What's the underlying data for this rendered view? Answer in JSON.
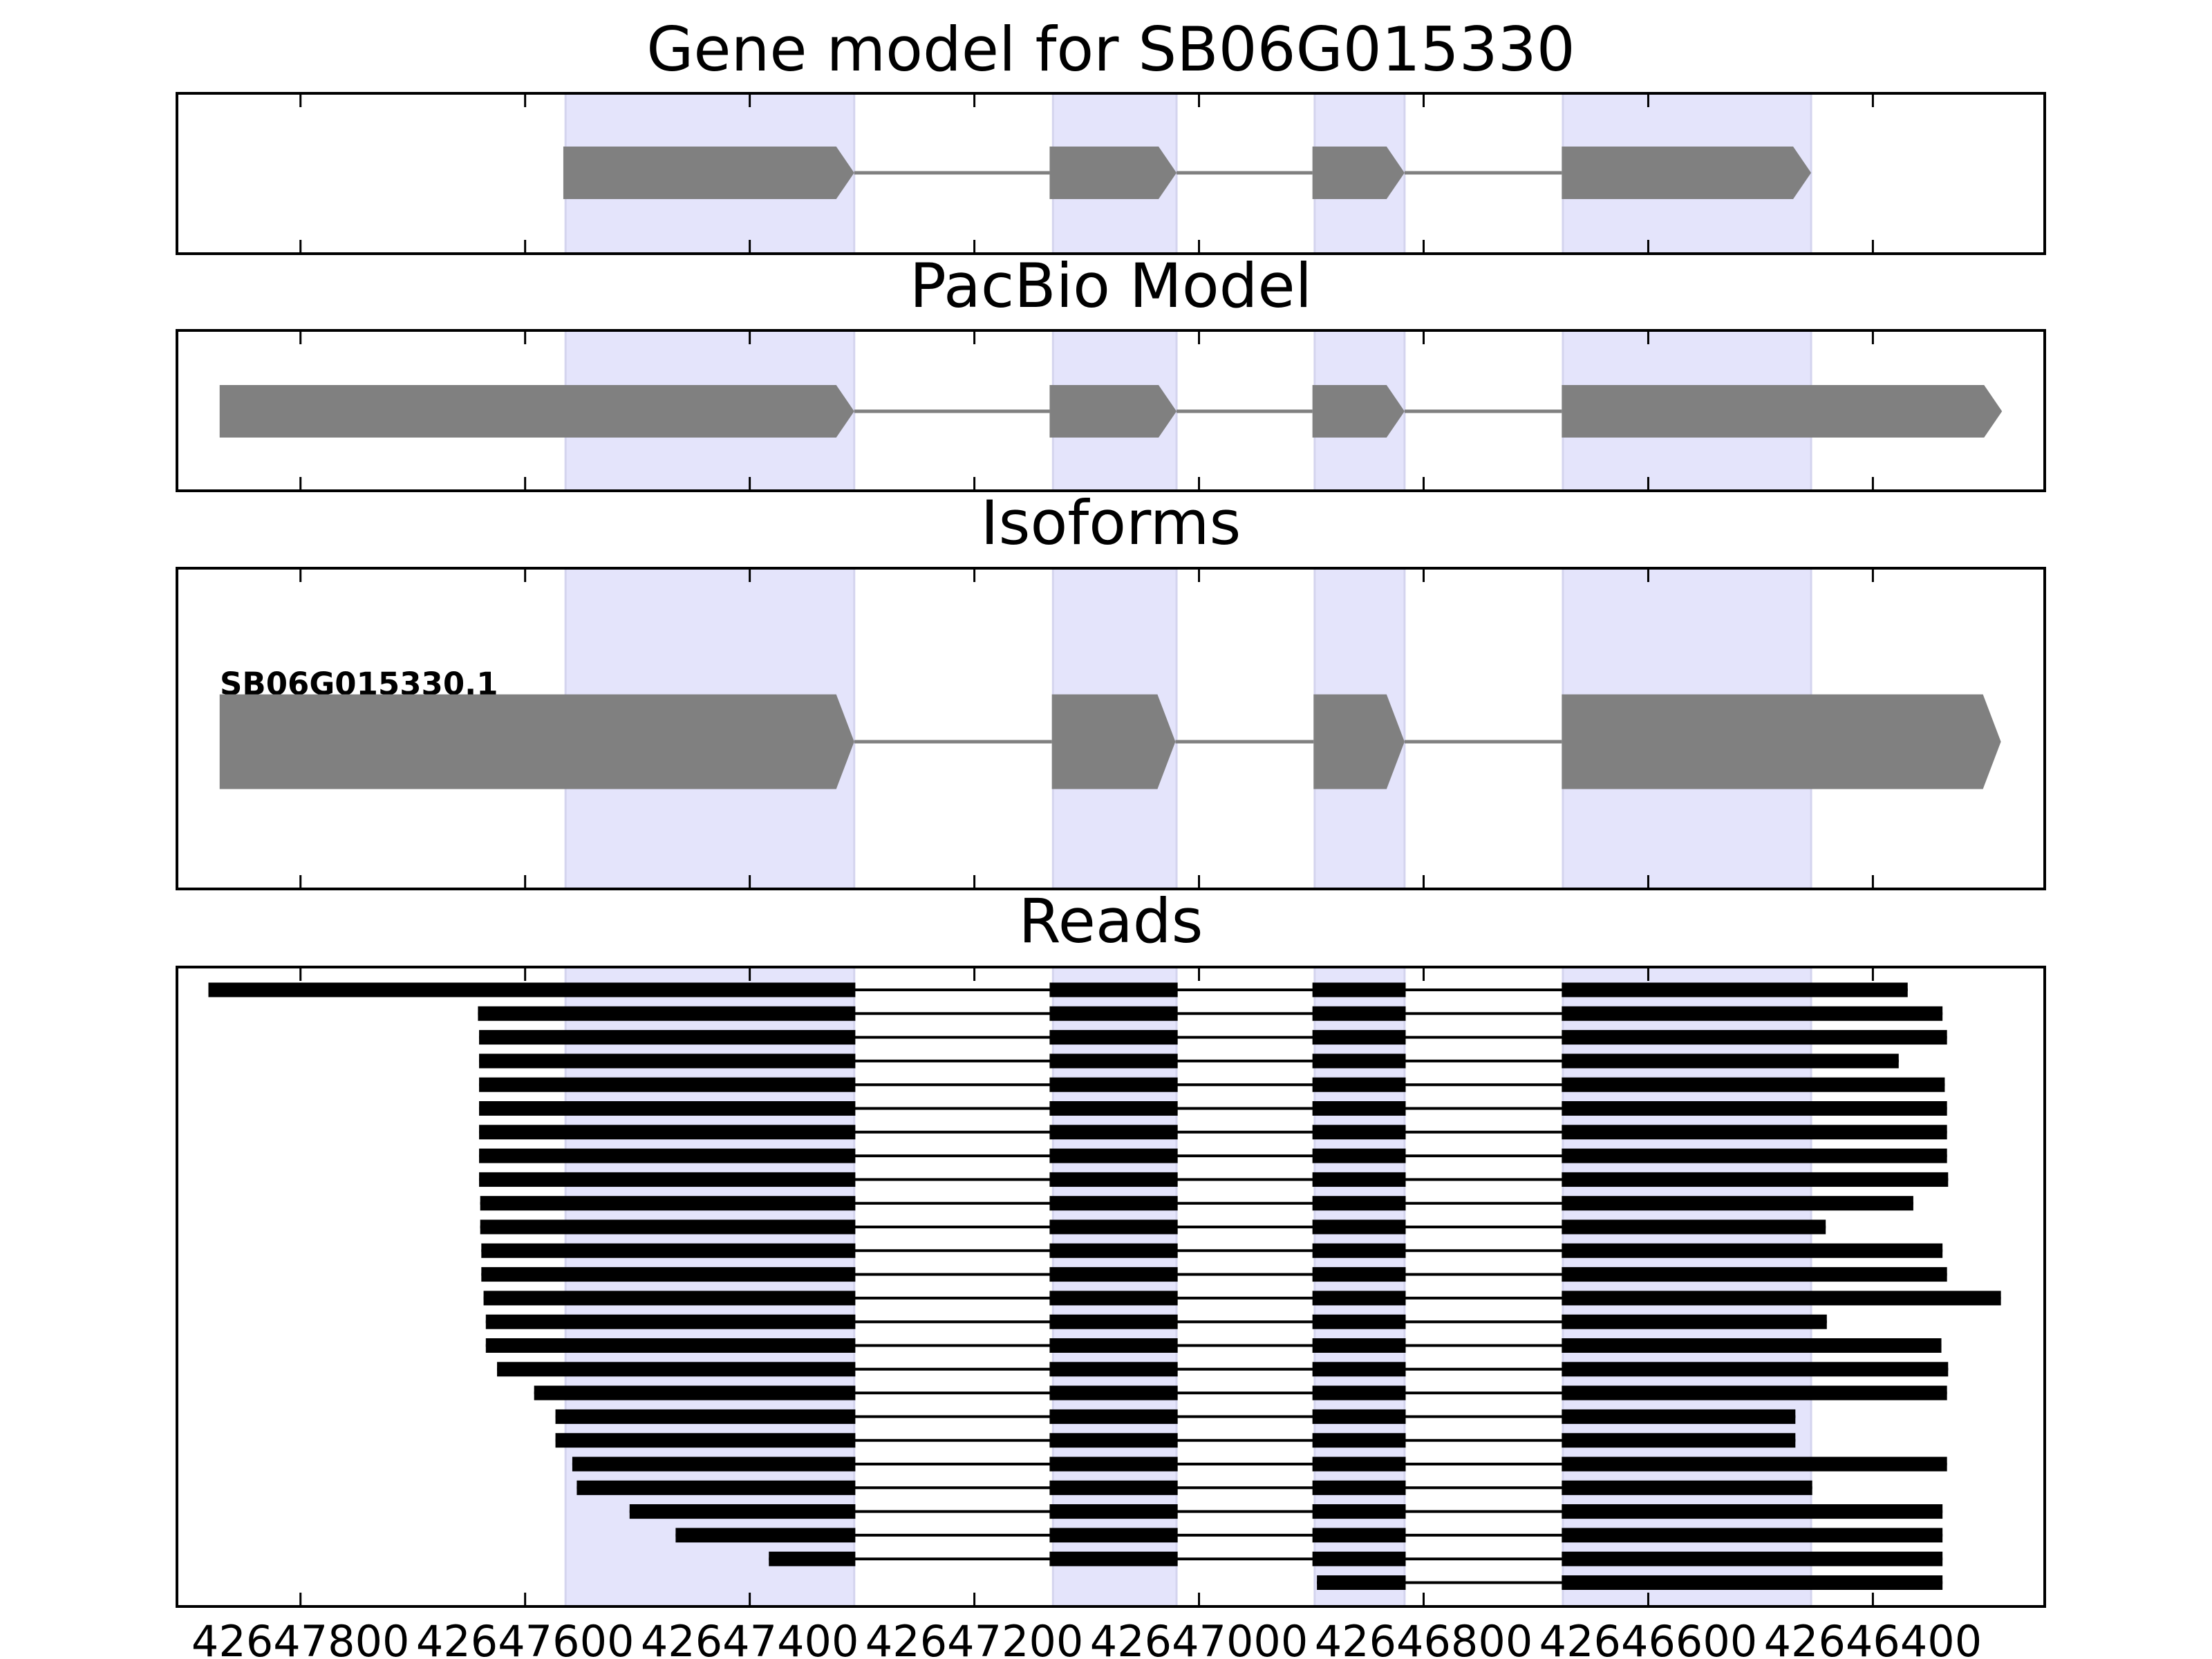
{
  "chart_data": [
    {
      "type": "gene",
      "title": "Gene model for SB06G015330",
      "xlim": [
        42647910,
        42646247
      ],
      "xticks": [
        42647800,
        42647600,
        42647400,
        42647200,
        42647000,
        42646800,
        42646600,
        42646400
      ],
      "highlights": [
        [
          42647564,
          42647307
        ],
        [
          42647130,
          42647020
        ],
        [
          42646897,
          42646817
        ],
        [
          42646676,
          42646455
        ]
      ],
      "highlight_color": "#e4e4fb",
      "color": "#808080",
      "transcripts": [
        {
          "exons": [
            [
              42647566,
              42647307
            ],
            [
              42647133,
              42647020
            ],
            [
              42646899,
              42646817
            ],
            [
              42646677,
              42646455
            ]
          ]
        }
      ]
    },
    {
      "type": "gene",
      "title": "PacBio Model",
      "xlim": [
        42647910,
        42646247
      ],
      "xticks": [
        42647800,
        42647600,
        42647400,
        42647200,
        42647000,
        42646800,
        42646600,
        42646400
      ],
      "highlights": [
        [
          42647564,
          42647307
        ],
        [
          42647130,
          42647020
        ],
        [
          42646897,
          42646817
        ],
        [
          42646676,
          42646455
        ]
      ],
      "highlight_color": "#e4e4fb",
      "color": "#808080",
      "transcripts": [
        {
          "exons": [
            [
              42647872,
              42647307
            ],
            [
              42647133,
              42647020
            ],
            [
              42646899,
              42646817
            ],
            [
              42646677,
              42646285
            ]
          ]
        }
      ]
    },
    {
      "type": "gene",
      "title": "Isoforms",
      "xlim": [
        42647910,
        42646247
      ],
      "xticks": [
        42647800,
        42647600,
        42647400,
        42647200,
        42647000,
        42646800,
        42646600,
        42646400
      ],
      "highlights": [
        [
          42647564,
          42647307
        ],
        [
          42647130,
          42647020
        ],
        [
          42646897,
          42646817
        ],
        [
          42646676,
          42646455
        ]
      ],
      "highlight_color": "#e4e4fb",
      "color": "#808080",
      "transcripts": [
        {
          "name": "SB06G015330.1",
          "exons": [
            [
              42647872,
              42647307
            ],
            [
              42647131,
              42647021
            ],
            [
              42646898,
              42646817
            ],
            [
              42646677,
              42646286
            ]
          ]
        }
      ]
    },
    {
      "type": "reads",
      "title": "Reads",
      "xlim": [
        42647910,
        42646247
      ],
      "xticks": [
        42647800,
        42647600,
        42647400,
        42647200,
        42647000,
        42646800,
        42646600,
        42646400
      ],
      "highlights": [
        [
          42647564,
          42647307
        ],
        [
          42647130,
          42647020
        ],
        [
          42646897,
          42646817
        ],
        [
          42646676,
          42646455
        ]
      ],
      "highlight_color": "#e4e4fb",
      "color": "#000000",
      "exons": [
        [
          42647882,
          42647306
        ],
        [
          42647133,
          42647019
        ],
        [
          42646899,
          42646816
        ],
        [
          42646677,
          42646286
        ]
      ],
      "reads": [
        {
          "start": 42647882,
          "end": 42646369
        },
        {
          "start": 42647642,
          "end": 42646338
        },
        {
          "start": 42647641,
          "end": 42646334
        },
        {
          "start": 42647641,
          "end": 42646377
        },
        {
          "start": 42647641,
          "end": 42646336
        },
        {
          "start": 42647641,
          "end": 42646334
        },
        {
          "start": 42647641,
          "end": 42646334
        },
        {
          "start": 42647641,
          "end": 42646334
        },
        {
          "start": 42647641,
          "end": 42646333
        },
        {
          "start": 42647640,
          "end": 42646364
        },
        {
          "start": 42647640,
          "end": 42646442
        },
        {
          "start": 42647639,
          "end": 42646338
        },
        {
          "start": 42647639,
          "end": 42646334
        },
        {
          "start": 42647637,
          "end": 42646286
        },
        {
          "start": 42647635,
          "end": 42646441
        },
        {
          "start": 42647635,
          "end": 42646339
        },
        {
          "start": 42647625,
          "end": 42646333
        },
        {
          "start": 42647592,
          "end": 42646334
        },
        {
          "start": 42647573,
          "end": 42646469
        },
        {
          "start": 42647573,
          "end": 42646469
        },
        {
          "start": 42647558,
          "end": 42646334
        },
        {
          "start": 42647554,
          "end": 42646454
        },
        {
          "start": 42647507,
          "end": 42646338
        },
        {
          "start": 42647466,
          "end": 42646338
        },
        {
          "start": 42647383,
          "end": 42646338
        },
        {
          "start": 42646895,
          "end": 42646338
        }
      ]
    }
  ]
}
